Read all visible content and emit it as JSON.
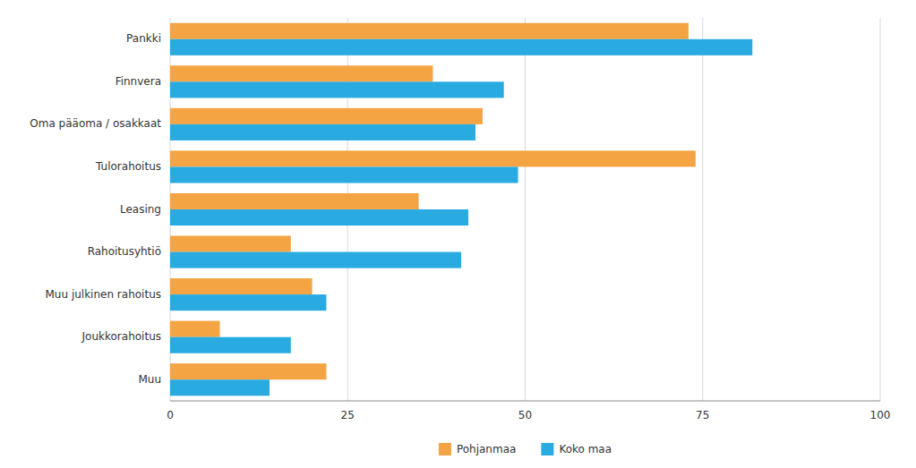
{
  "chart_data": {
    "type": "bar",
    "orientation": "horizontal",
    "categories": [
      "Pankki",
      "Finnvera",
      "Oma pääoma / osakkaat",
      "Tulorahoitus",
      "Leasing",
      "Rahoitusyhtiö",
      "Muu julkinen rahoitus",
      "Joukkorahoitus",
      "Muu"
    ],
    "series": [
      {
        "name": "Pohjanmaa",
        "color": "#f4a442",
        "values": [
          73,
          37,
          44,
          74,
          35,
          17,
          20,
          7,
          22
        ]
      },
      {
        "name": "Koko maa",
        "color": "#29abe2",
        "values": [
          82,
          47,
          43,
          49,
          42,
          41,
          22,
          17,
          14
        ]
      }
    ],
    "xlim": [
      0,
      100
    ],
    "xticks": [
      0,
      25,
      50,
      75,
      100
    ],
    "grid": true,
    "legend": "bottom"
  }
}
